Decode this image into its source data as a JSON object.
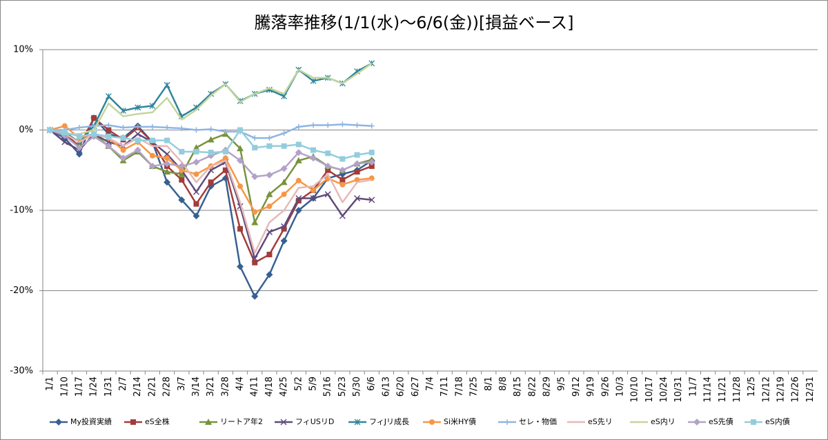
{
  "chart_data": {
    "type": "line",
    "title": "騰落率推移(1/1(水)〜6/6(金))[損益ベース]",
    "categories": [
      "1/1",
      "1/10",
      "1/17",
      "1/24",
      "1/31",
      "2/7",
      "2/14",
      "2/21",
      "2/28",
      "3/7",
      "3/14",
      "3/21",
      "3/28",
      "4/4",
      "4/11",
      "4/18",
      "4/25",
      "5/2",
      "5/9",
      "5/16",
      "5/23",
      "5/30",
      "6/6",
      "6/13",
      "6/20",
      "6/27",
      "7/4",
      "7/11",
      "7/18",
      "7/25",
      "8/1",
      "8/8",
      "8/15",
      "8/22",
      "8/29",
      "9/5",
      "9/12",
      "9/19",
      "9/26",
      "10/3",
      "10/10",
      "10/17",
      "10/24",
      "10/31",
      "11/7",
      "11/14",
      "11/21",
      "11/28",
      "12/5",
      "12/12",
      "12/19",
      "12/26",
      "12/31"
    ],
    "ylim": [
      -30,
      10
    ],
    "yticks": [
      {
        "value": -30,
        "label": "-30%"
      },
      {
        "value": -20,
        "label": "-20%"
      },
      {
        "value": -10,
        "label": "-10%"
      },
      {
        "value": 0,
        "label": "0%"
      },
      {
        "value": 10,
        "label": "10%"
      }
    ],
    "grid": true,
    "legend": "bottom",
    "series": [
      {
        "name": "My投資実績",
        "color": "#376092",
        "marker": "diamond",
        "values": [
          0,
          -1,
          -3,
          1.5,
          -0.5,
          -1,
          0.5,
          -1.5,
          -6.5,
          -8.7,
          -10.7,
          -7,
          -6,
          -17,
          -20.7,
          -18,
          -13.8,
          -10,
          -8.5,
          -6,
          -5.5,
          -5,
          -3.8,
          null,
          null,
          null,
          null,
          null,
          null,
          null,
          null,
          null,
          null,
          null,
          null,
          null,
          null,
          null,
          null,
          null,
          null,
          null,
          null,
          null,
          null,
          null,
          null,
          null,
          null,
          null,
          null,
          null,
          null
        ]
      },
      {
        "name": "eS全株",
        "color": "#a33c3a",
        "marker": "square",
        "values": [
          0,
          -0.5,
          -2,
          1.5,
          0,
          -1.2,
          0.3,
          -1.5,
          -4.5,
          -6.2,
          -9.2,
          -6.5,
          -5,
          -12.3,
          -16.5,
          -15.5,
          -12.3,
          -8.8,
          -7.5,
          -5,
          -6.2,
          -5.2,
          -4.5,
          null,
          null,
          null,
          null,
          null,
          null,
          null,
          null,
          null,
          null,
          null,
          null,
          null,
          null,
          null,
          null,
          null,
          null,
          null,
          null,
          null,
          null,
          null,
          null,
          null,
          null,
          null,
          null,
          null,
          null
        ]
      },
      {
        "name": "リートア年2",
        "color": "#77933c",
        "marker": "triangle",
        "values": [
          0,
          -0.5,
          -1.5,
          -0.5,
          -2,
          -3.8,
          -2.7,
          -4.5,
          -5.2,
          -5.5,
          -2.2,
          -1.2,
          -0.5,
          -2.3,
          -11.5,
          -8,
          -6.5,
          -3.8,
          -3.3,
          -4.5,
          -5,
          -4.2,
          -3.7,
          null,
          null,
          null,
          null,
          null,
          null,
          null,
          null,
          null,
          null,
          null,
          null,
          null,
          null,
          null,
          null,
          null,
          null,
          null,
          null,
          null,
          null,
          null,
          null,
          null,
          null,
          null,
          null,
          null,
          null
        ]
      },
      {
        "name": "フィUSリD",
        "color": "#604a7b",
        "marker": "x",
        "values": [
          0,
          -1.5,
          -2.5,
          -0.5,
          -1.5,
          -2,
          -0.5,
          -1.5,
          -3,
          -5,
          -7.7,
          -5,
          -4,
          -9.5,
          -16,
          -12.7,
          -12,
          -8.5,
          -8.5,
          -8,
          -10.7,
          -8.5,
          -8.7,
          null,
          null,
          null,
          null,
          null,
          null,
          null,
          null,
          null,
          null,
          null,
          null,
          null,
          null,
          null,
          null,
          null,
          null,
          null,
          null,
          null,
          null,
          null,
          null,
          null,
          null,
          null,
          null,
          null,
          null
        ]
      },
      {
        "name": "フィJリ成長",
        "color": "#31859c",
        "marker": "star",
        "values": [
          0,
          -0.3,
          -1.5,
          0.5,
          4.2,
          2.4,
          2.8,
          3,
          5.6,
          1.7,
          2.8,
          4.5,
          5.7,
          3.6,
          4.5,
          5,
          4.2,
          7.5,
          6.1,
          6.5,
          5.8,
          7.3,
          8.3,
          null,
          null,
          null,
          null,
          null,
          null,
          null,
          null,
          null,
          null,
          null,
          null,
          null,
          null,
          null,
          null,
          null,
          null,
          null,
          null,
          null,
          null,
          null,
          null,
          null,
          null,
          null,
          null,
          null,
          null
        ]
      },
      {
        "name": "Si米HY債",
        "color": "#f79646",
        "marker": "circle",
        "values": [
          0,
          0.5,
          -1,
          -0.5,
          -1,
          -2.5,
          -1.5,
          -3.2,
          -3.5,
          -5,
          -5.5,
          -4.5,
          -3.5,
          -7,
          -10.2,
          -9.5,
          -8,
          -6.3,
          -7.5,
          -6,
          -6.8,
          -6.2,
          -6,
          null,
          null,
          null,
          null,
          null,
          null,
          null,
          null,
          null,
          null,
          null,
          null,
          null,
          null,
          null,
          null,
          null,
          null,
          null,
          null,
          null,
          null,
          null,
          null,
          null,
          null,
          null,
          null,
          null,
          null
        ]
      },
      {
        "name": "セレ・物価",
        "color": "#8eb4e3",
        "marker": "plus",
        "values": [
          0,
          0,
          0.3,
          0.5,
          0.6,
          0.3,
          0.4,
          0.4,
          0.3,
          0.2,
          0,
          0.1,
          -0.2,
          -0.2,
          -1,
          -1,
          -0.4,
          0.4,
          0.6,
          0.6,
          0.7,
          0.6,
          0.5,
          null,
          null,
          null,
          null,
          null,
          null,
          null,
          null,
          null,
          null,
          null,
          null,
          null,
          null,
          null,
          null,
          null,
          null,
          null,
          null,
          null,
          null,
          null,
          null,
          null,
          null,
          null,
          null,
          null,
          null
        ]
      },
      {
        "name": "eS先リ",
        "color": "#e6b9b8",
        "marker": "none",
        "values": [
          0,
          -0.5,
          -1.5,
          -0.5,
          -1,
          -2,
          -1,
          -2,
          -2,
          -4,
          -6.5,
          -4.5,
          -3.8,
          -9,
          -15.3,
          -11.5,
          -10,
          -7.2,
          -7,
          -5.5,
          -9,
          -6.5,
          -6.2,
          null,
          null,
          null,
          null,
          null,
          null,
          null,
          null,
          null,
          null,
          null,
          null,
          null,
          null,
          null,
          null,
          null,
          null,
          null,
          null,
          null,
          null,
          null,
          null,
          null,
          null,
          null,
          null,
          null,
          null
        ]
      },
      {
        "name": "eS内リ",
        "color": "#c3d69b",
        "marker": "none",
        "values": [
          0,
          -0.5,
          -0.5,
          0,
          3.3,
          1.7,
          2,
          2.2,
          4,
          1.3,
          2.5,
          4.3,
          5.7,
          3.5,
          4.5,
          5.2,
          4.5,
          7.5,
          6.5,
          6.5,
          5.8,
          7,
          8.3,
          null,
          null,
          null,
          null,
          null,
          null,
          null,
          null,
          null,
          null,
          null,
          null,
          null,
          null,
          null,
          null,
          null,
          null,
          null,
          null,
          null,
          null,
          null,
          null,
          null,
          null,
          null,
          null,
          null,
          null
        ]
      },
      {
        "name": "eS先債",
        "color": "#b3a2c7",
        "marker": "diamond",
        "values": [
          0,
          -0.7,
          -2.2,
          -0.8,
          -2,
          -3.5,
          -2.5,
          -4.5,
          -4.2,
          -4.5,
          -4,
          -3.2,
          -2.5,
          -3.8,
          -5.8,
          -5.6,
          -4.8,
          -2.8,
          -3.5,
          -4.5,
          -5,
          -4.2,
          -4,
          null,
          null,
          null,
          null,
          null,
          null,
          null,
          null,
          null,
          null,
          null,
          null,
          null,
          null,
          null,
          null,
          null,
          null,
          null,
          null,
          null,
          null,
          null,
          null,
          null,
          null,
          null,
          null,
          null,
          null
        ]
      },
      {
        "name": "eS内債",
        "color": "#93cddd",
        "marker": "square",
        "values": [
          0,
          -0.3,
          -0.8,
          -0.5,
          -0.8,
          -1,
          -1.3,
          -1.3,
          -1.3,
          -2.7,
          -2.7,
          -2.8,
          -2.7,
          0,
          -2.2,
          -2,
          -2,
          -1.8,
          -2.5,
          -2.9,
          -3.6,
          -3.1,
          -2.8,
          null,
          null,
          null,
          null,
          null,
          null,
          null,
          null,
          null,
          null,
          null,
          null,
          null,
          null,
          null,
          null,
          null,
          null,
          null,
          null,
          null,
          null,
          null,
          null,
          null,
          null,
          null,
          null,
          null,
          null
        ]
      }
    ]
  }
}
